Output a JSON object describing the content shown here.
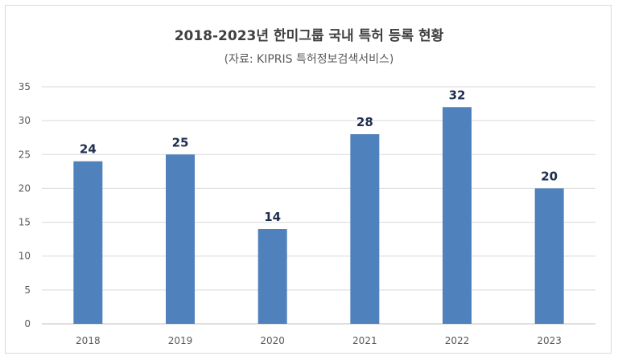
{
  "chart_data": {
    "type": "bar",
    "title": "2018-2023년 한미그룹 국내 특허 등록 현황",
    "subtitle": "(자료: KIPRIS 특허정보검색서비스)",
    "categories": [
      "2018",
      "2019",
      "2020",
      "2021",
      "2022",
      "2023"
    ],
    "values": [
      24,
      25,
      14,
      28,
      32,
      20
    ],
    "ylim": [
      0,
      35
    ],
    "yticks": [
      0,
      5,
      10,
      15,
      20,
      25,
      30,
      35
    ],
    "xlabel": "",
    "ylabel": "",
    "grid": true,
    "bar_color": "#4f81bd"
  }
}
